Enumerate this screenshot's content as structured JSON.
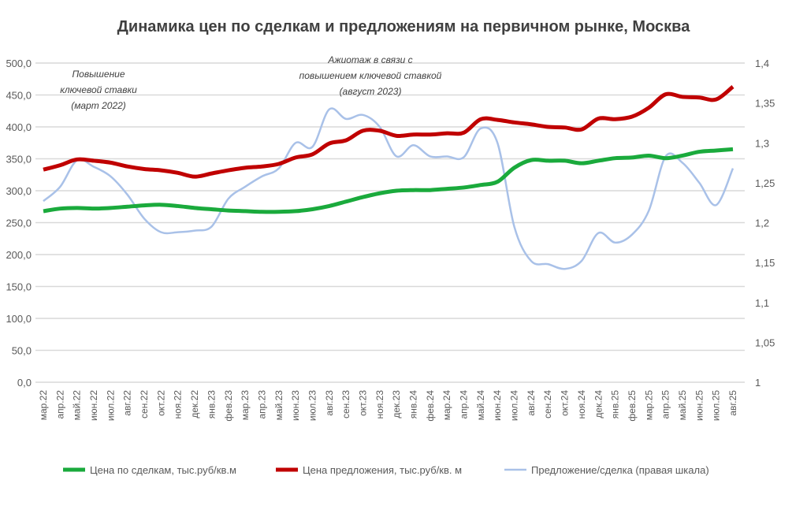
{
  "chart_data": {
    "type": "line",
    "title": "Динамика цен по сделкам и предложениям на первичном рынке, Москва",
    "categories": [
      "мар.22",
      "апр.22",
      "май.22",
      "июн.22",
      "июл.22",
      "авг.22",
      "сен.22",
      "окт.22",
      "ноя.22",
      "дек.22",
      "янв.23",
      "фев.23",
      "мар.23",
      "апр.23",
      "май.23",
      "июн.23",
      "июл.23",
      "авг.23",
      "сен.23",
      "окт.23",
      "ноя.23",
      "дек.23",
      "янв.24",
      "фев.24",
      "мар.24",
      "апр.24",
      "май.24",
      "июн.24",
      "июл.24",
      "авг.24",
      "сен.24",
      "окт.24",
      "ноя.24",
      "дек.24",
      "янв.25",
      "фев.25",
      "мар.25",
      "апр.25",
      "май.25",
      "июн.25",
      "июл.25",
      "авг.25"
    ],
    "left_axis": {
      "ylim": [
        0,
        500
      ],
      "ticks": [
        "0,0",
        "50,0",
        "100,0",
        "150,0",
        "200,0",
        "250,0",
        "300,0",
        "350,0",
        "400,0",
        "450,0",
        "500,0"
      ]
    },
    "right_axis": {
      "ylim": [
        1,
        1.4
      ],
      "ticks": [
        "1",
        "1,05",
        "1,1",
        "1,15",
        "1,2",
        "1,25",
        "1,3",
        "1,35",
        "1,4"
      ]
    },
    "grid": true,
    "legend_position": "bottom",
    "series": [
      {
        "name": "Цена по сделкам, тыс.руб/кв.м",
        "axis": "left",
        "color": "#1aaa3c",
        "values": [
          268,
          272,
          273,
          272,
          273,
          275,
          277,
          278,
          276,
          273,
          271,
          269,
          268,
          267,
          267,
          268,
          271,
          276,
          283,
          290,
          296,
          300,
          301,
          301,
          303,
          305,
          309,
          314,
          336,
          348,
          347,
          347,
          343,
          347,
          351,
          352,
          355,
          351,
          355,
          361,
          363,
          365
        ]
      },
      {
        "name": "Цена предложения, тыс.руб/кв. м",
        "axis": "left",
        "color": "#c00000",
        "values": [
          333,
          340,
          349,
          347,
          344,
          338,
          334,
          332,
          328,
          322,
          327,
          332,
          336,
          338,
          342,
          352,
          357,
          374,
          379,
          394,
          394,
          386,
          388,
          388,
          390,
          391,
          412,
          411,
          407,
          404,
          400,
          399,
          396,
          413,
          412,
          416,
          430,
          451,
          447,
          446,
          443,
          463
        ]
      },
      {
        "name": "Предложение/сделка (правая шкала)",
        "axis": "right",
        "color": "#a9c1e8",
        "values": [
          1.227,
          1.245,
          1.278,
          1.27,
          1.258,
          1.235,
          1.205,
          1.188,
          1.188,
          1.19,
          1.195,
          1.23,
          1.245,
          1.258,
          1.268,
          1.3,
          1.295,
          1.342,
          1.33,
          1.335,
          1.32,
          1.283,
          1.297,
          1.283,
          1.283,
          1.282,
          1.318,
          1.3,
          1.195,
          1.152,
          1.148,
          1.142,
          1.152,
          1.187,
          1.175,
          1.185,
          1.215,
          1.283,
          1.275,
          1.25,
          1.222,
          1.268
        ]
      }
    ],
    "annotations": [
      {
        "lines": [
          "Повышение",
          "ключевой ставки",
          "(март 2022)"
        ]
      },
      {
        "lines": [
          "Ажиотаж в связи с",
          "повышением ключевой ставкой",
          "(август 2023)"
        ]
      }
    ]
  }
}
